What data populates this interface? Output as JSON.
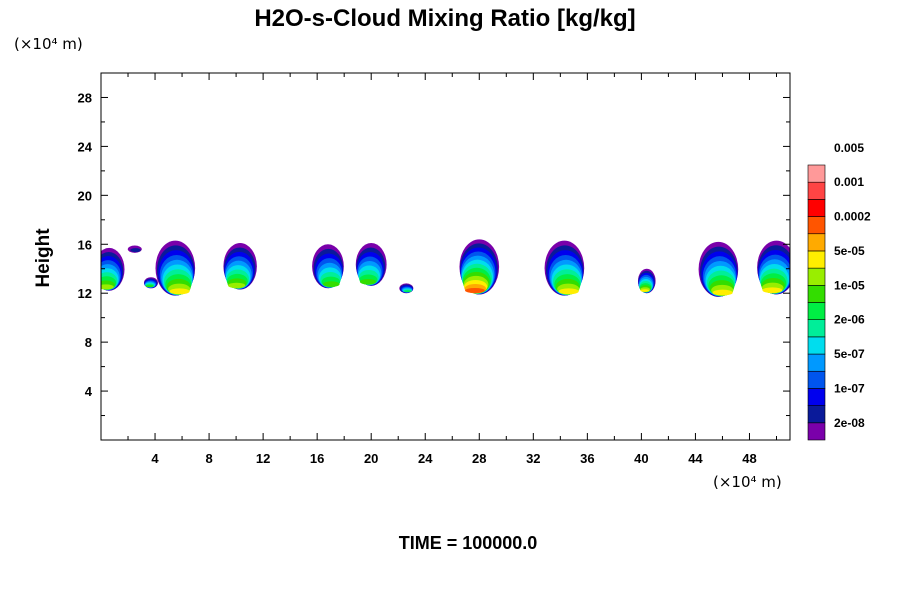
{
  "chart_data": {
    "type": "heatmap",
    "title": "H2O-s-Cloud Mixing Ratio [kg/kg]",
    "ylabel": "Height",
    "y_unit": "(×10⁴ m)",
    "x_unit": "(×10⁴ m)",
    "xlim": [
      0,
      51
    ],
    "ylim": [
      0,
      30
    ],
    "x_ticks": [
      4,
      8,
      12,
      16,
      20,
      24,
      28,
      32,
      36,
      40,
      44,
      48
    ],
    "y_ticks": [
      4,
      8,
      12,
      16,
      20,
      24,
      28
    ],
    "x_tick_labels": [
      "4",
      "8",
      "12",
      "16",
      "20",
      "24",
      "28",
      "32",
      "36",
      "40",
      "44",
      "48"
    ],
    "y_tick_labels": [
      "4",
      "8",
      "12",
      "16",
      "20",
      "24",
      "28"
    ],
    "time_label": "TIME = 100000.0",
    "colorbar": {
      "colors": [
        "#7a00aa",
        "#0a1a9a",
        "#0000ee",
        "#0055ee",
        "#0099ff",
        "#00ddee",
        "#00ee99",
        "#00ee44",
        "#33dd00",
        "#99ee00",
        "#ffee00",
        "#ffaa00",
        "#ff5500",
        "#ff0000",
        "#ff4444",
        "#ff9999"
      ],
      "levels": [
        {
          "label": "2e-08",
          "value": 2e-08
        },
        {
          "label": "1e-07",
          "value": 1e-07
        },
        {
          "label": "5e-07",
          "value": 5e-07
        },
        {
          "label": "2e-06",
          "value": 2e-06
        },
        {
          "label": "1e-05",
          "value": 1e-05
        },
        {
          "label": "5e-05",
          "value": 5e-05
        },
        {
          "label": "0.0002",
          "value": 0.0002
        },
        {
          "label": "0.001",
          "value": 0.001
        },
        {
          "label": "0.005",
          "value": 0.005
        }
      ]
    },
    "cells": [
      {
        "x": 0.6,
        "z_bottom": 12.2,
        "z_top": 15.7,
        "peak_level": 9
      },
      {
        "x": 2.5,
        "z_bottom": 15.3,
        "z_top": 15.9,
        "peak_level": 1
      },
      {
        "x": 3.7,
        "z_bottom": 12.4,
        "z_top": 13.3,
        "peak_level": 8
      },
      {
        "x": 5.5,
        "z_bottom": 11.8,
        "z_top": 16.3,
        "peak_level": 10
      },
      {
        "x": 10.3,
        "z_bottom": 12.3,
        "z_top": 16.1,
        "peak_level": 9
      },
      {
        "x": 16.8,
        "z_bottom": 12.4,
        "z_top": 16.0,
        "peak_level": 8
      },
      {
        "x": 20.0,
        "z_bottom": 12.6,
        "z_top": 16.1,
        "peak_level": 8
      },
      {
        "x": 22.6,
        "z_bottom": 12.0,
        "z_top": 12.8,
        "peak_level": 7
      },
      {
        "x": 28.0,
        "z_bottom": 11.9,
        "z_top": 16.4,
        "peak_level": 12
      },
      {
        "x": 34.3,
        "z_bottom": 11.8,
        "z_top": 16.3,
        "peak_level": 10
      },
      {
        "x": 40.4,
        "z_bottom": 12.0,
        "z_top": 14.0,
        "peak_level": 10
      },
      {
        "x": 45.7,
        "z_bottom": 11.7,
        "z_top": 16.2,
        "peak_level": 10
      },
      {
        "x": 50.0,
        "z_bottom": 11.9,
        "z_top": 16.3,
        "peak_level": 10
      }
    ]
  }
}
